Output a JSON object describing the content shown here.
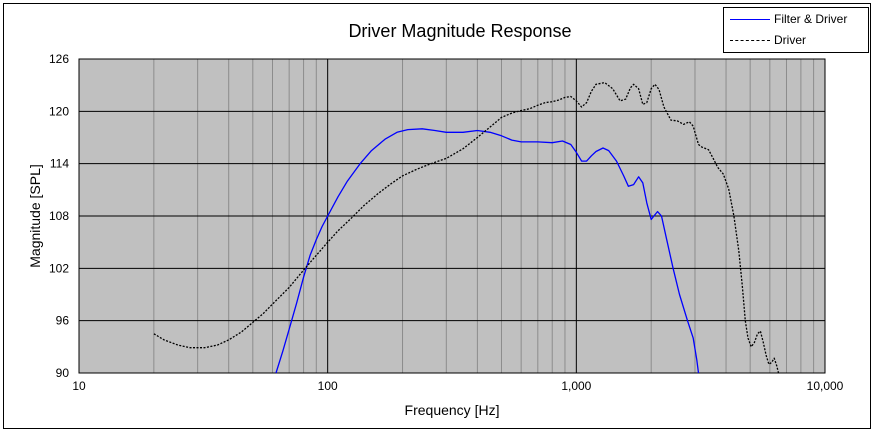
{
  "chart_data": {
    "type": "line",
    "title": "Driver Magnitude Response",
    "xlabel": "Frequency [Hz]",
    "ylabel": "Magnitude [SPL]",
    "xscale": "log",
    "xlim": [
      10,
      10000
    ],
    "ylim": [
      90,
      126
    ],
    "xticks": [
      10,
      100,
      1000,
      10000
    ],
    "xtick_labels": [
      "10",
      "100",
      "1,000",
      "10,000"
    ],
    "yticks": [
      90,
      96,
      102,
      108,
      114,
      120,
      126
    ],
    "ytick_labels": [
      "90",
      "96",
      "102",
      "108",
      "114",
      "120",
      "126"
    ],
    "grid": true,
    "legend_position": "top-right",
    "plot_background": "#c0c0c0",
    "series": [
      {
        "name": "Filter & Driver",
        "color": "#0000ff",
        "style": "solid",
        "points": [
          [
            62,
            90
          ],
          [
            66,
            92.5
          ],
          [
            70,
            95
          ],
          [
            75,
            98
          ],
          [
            80,
            101
          ],
          [
            85,
            103.5
          ],
          [
            90,
            105.3
          ],
          [
            95,
            106.8
          ],
          [
            100,
            108
          ],
          [
            110,
            110.2
          ],
          [
            120,
            112
          ],
          [
            135,
            114
          ],
          [
            150,
            115.5
          ],
          [
            170,
            116.8
          ],
          [
            190,
            117.6
          ],
          [
            210,
            117.9
          ],
          [
            240,
            118
          ],
          [
            270,
            117.8
          ],
          [
            300,
            117.6
          ],
          [
            350,
            117.6
          ],
          [
            400,
            117.8
          ],
          [
            450,
            117.6
          ],
          [
            500,
            117.2
          ],
          [
            550,
            116.7
          ],
          [
            600,
            116.5
          ],
          [
            700,
            116.5
          ],
          [
            800,
            116.4
          ],
          [
            880,
            116.6
          ],
          [
            950,
            116.2
          ],
          [
            1000,
            115.3
          ],
          [
            1050,
            114.3
          ],
          [
            1100,
            114.3
          ],
          [
            1150,
            114.9
          ],
          [
            1200,
            115.4
          ],
          [
            1280,
            115.8
          ],
          [
            1350,
            115.5
          ],
          [
            1450,
            114.3
          ],
          [
            1550,
            112.6
          ],
          [
            1620,
            111.4
          ],
          [
            1700,
            111.6
          ],
          [
            1780,
            112.5
          ],
          [
            1850,
            111.8
          ],
          [
            1920,
            109.5
          ],
          [
            2000,
            107.6
          ],
          [
            2050,
            108
          ],
          [
            2120,
            108.5
          ],
          [
            2200,
            108
          ],
          [
            2300,
            105.5
          ],
          [
            2450,
            102
          ],
          [
            2600,
            99
          ],
          [
            2800,
            96
          ],
          [
            2950,
            94
          ],
          [
            3050,
            91.5
          ],
          [
            3100,
            90
          ]
        ]
      },
      {
        "name": "Driver",
        "color": "#000000",
        "style": "dashed",
        "points": [
          [
            20,
            94.5
          ],
          [
            22,
            93.8
          ],
          [
            25,
            93.2
          ],
          [
            28,
            92.9
          ],
          [
            32,
            92.9
          ],
          [
            36,
            93.2
          ],
          [
            40,
            93.8
          ],
          [
            45,
            94.7
          ],
          [
            50,
            95.8
          ],
          [
            55,
            96.8
          ],
          [
            60,
            97.9
          ],
          [
            70,
            99.8
          ],
          [
            80,
            101.8
          ],
          [
            90,
            103.5
          ],
          [
            100,
            105
          ],
          [
            110,
            106.3
          ],
          [
            125,
            107.8
          ],
          [
            140,
            109.2
          ],
          [
            160,
            110.6
          ],
          [
            180,
            111.7
          ],
          [
            200,
            112.6
          ],
          [
            230,
            113.4
          ],
          [
            260,
            114
          ],
          [
            300,
            114.6
          ],
          [
            350,
            115.7
          ],
          [
            400,
            117
          ],
          [
            450,
            118.2
          ],
          [
            500,
            119.3
          ],
          [
            550,
            119.8
          ],
          [
            600,
            120.1
          ],
          [
            650,
            120.3
          ],
          [
            700,
            120.7
          ],
          [
            750,
            121
          ],
          [
            800,
            121.1
          ],
          [
            850,
            121.3
          ],
          [
            900,
            121.6
          ],
          [
            950,
            121.7
          ],
          [
            1000,
            121.2
          ],
          [
            1050,
            120.5
          ],
          [
            1100,
            121
          ],
          [
            1150,
            122.3
          ],
          [
            1200,
            123.1
          ],
          [
            1300,
            123.3
          ],
          [
            1400,
            122.6
          ],
          [
            1500,
            121.2
          ],
          [
            1580,
            121.4
          ],
          [
            1650,
            122.7
          ],
          [
            1700,
            123.1
          ],
          [
            1780,
            122.6
          ],
          [
            1850,
            120.8
          ],
          [
            1920,
            121
          ],
          [
            2000,
            122.6
          ],
          [
            2070,
            123.1
          ],
          [
            2150,
            122.5
          ],
          [
            2250,
            120.5
          ],
          [
            2400,
            119
          ],
          [
            2550,
            118.9
          ],
          [
            2700,
            118.5
          ],
          [
            2850,
            118.8
          ],
          [
            2950,
            118.3
          ],
          [
            3100,
            116.2
          ],
          [
            3200,
            115.9
          ],
          [
            3400,
            115.6
          ],
          [
            3550,
            114.6
          ],
          [
            3700,
            113.6
          ],
          [
            3900,
            112.8
          ],
          [
            4100,
            111.1
          ],
          [
            4300,
            108
          ],
          [
            4500,
            104
          ],
          [
            4650,
            100
          ],
          [
            4780,
            96
          ],
          [
            4900,
            94
          ],
          [
            5050,
            93
          ],
          [
            5200,
            93.5
          ],
          [
            5350,
            94.5
          ],
          [
            5500,
            94.8
          ],
          [
            5650,
            93.5
          ],
          [
            5800,
            92
          ],
          [
            5950,
            91
          ],
          [
            6100,
            91.2
          ],
          [
            6250,
            91.7
          ],
          [
            6400,
            90.8
          ],
          [
            6500,
            90
          ]
        ]
      }
    ]
  }
}
